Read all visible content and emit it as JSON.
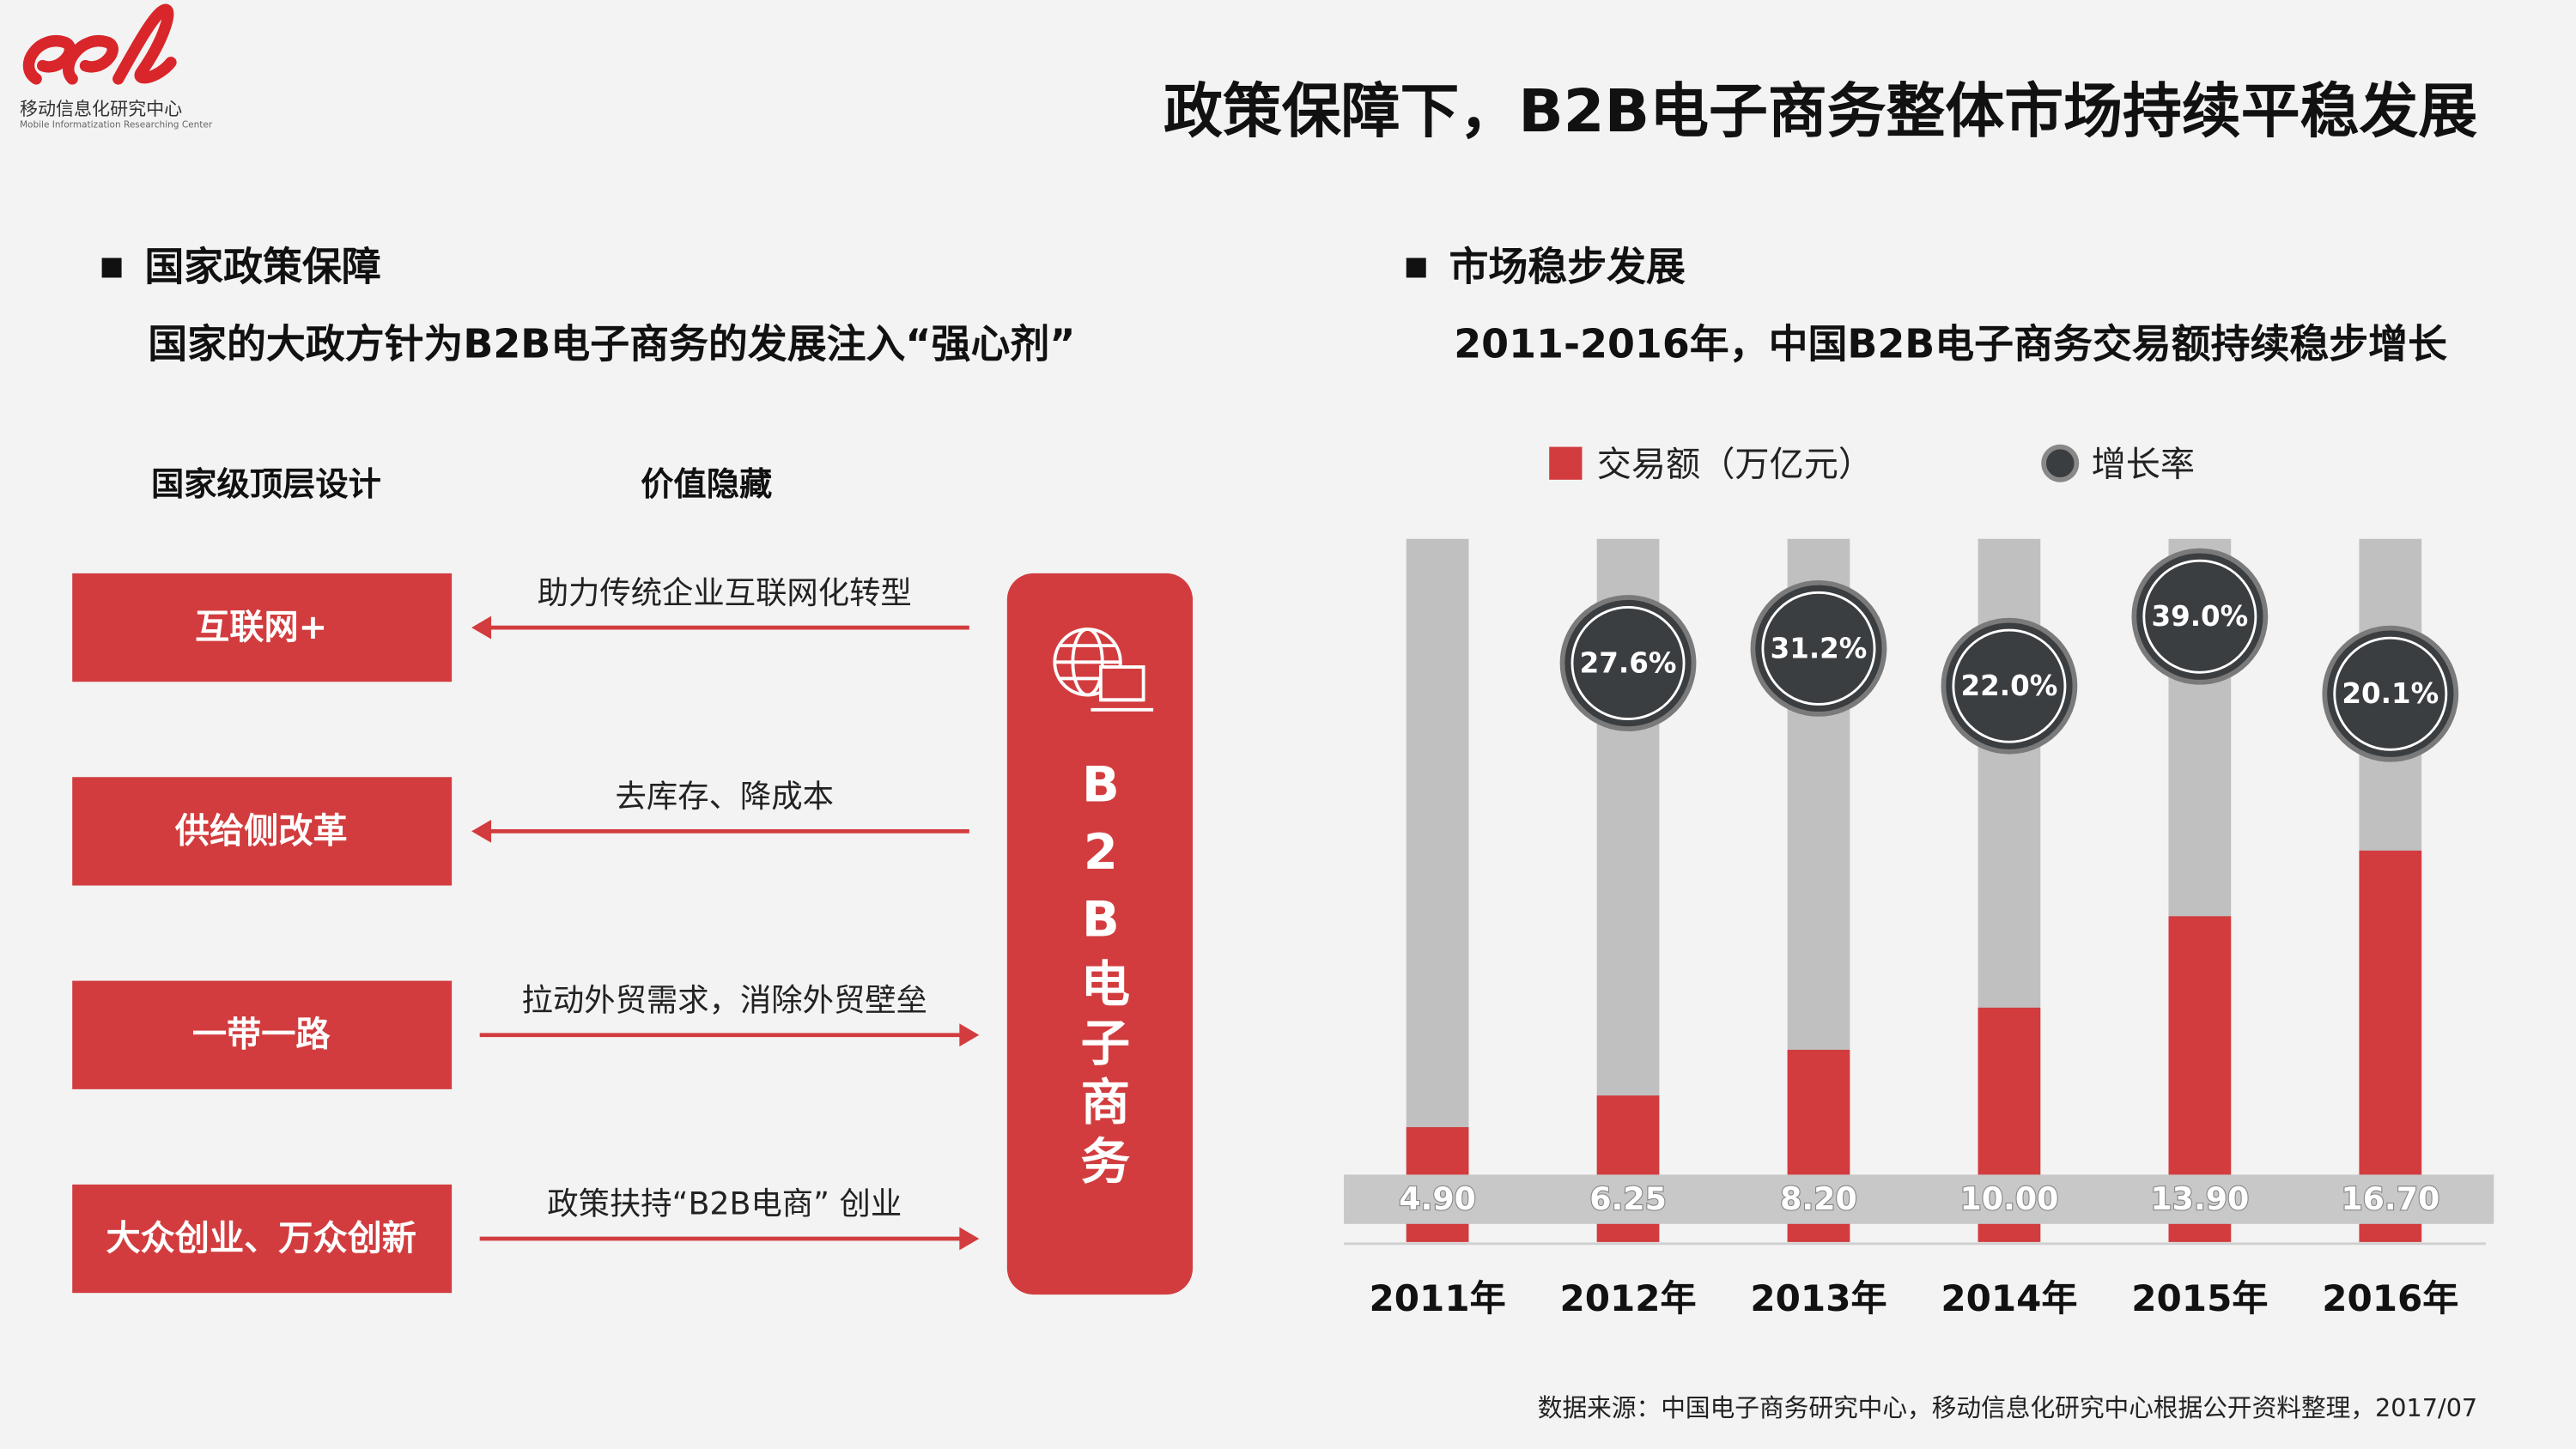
{
  "logo": {
    "name": "移动信息化研究中心",
    "subtitle": "Mobile Informatization Researching Center"
  },
  "title": "政策保障下，B2B电子商务整体市场持续平稳发展",
  "left": {
    "heading": "国家政策保障",
    "subheading": "国家的大政方针为B2B电子商务的发展注入“强心剂”",
    "column_headers": [
      "国家级顶层设计",
      "价值隐藏"
    ],
    "policies": [
      {
        "label": "互联网+",
        "value": "助力传统企业互联网化转型",
        "direction": "left"
      },
      {
        "label": "供给侧改革",
        "value": "去库存、降成本",
        "direction": "left"
      },
      {
        "label": "一带一路",
        "value": "拉动外贸需求，消除外贸壁垒",
        "direction": "right"
      },
      {
        "label": "大众创业、万众创新",
        "value": "政策扶持“B2B电商” 创业",
        "direction": "right"
      }
    ],
    "center": "B2B电子商务"
  },
  "right": {
    "heading": "市场稳步发展",
    "subheading": "2011-2016年，中国B2B电子商务交易额持续稳步增长"
  },
  "chart_data": {
    "type": "bar",
    "categories": [
      "2011年",
      "2012年",
      "2013年",
      "2014年",
      "2015年",
      "2016年"
    ],
    "series": [
      {
        "name": "交易额（万亿元）",
        "color": "#d23c3e",
        "values": [
          4.9,
          6.25,
          8.2,
          10.0,
          13.9,
          16.7
        ],
        "value_labels": [
          "4.90",
          "6.25",
          "8.20",
          "10.00",
          "13.90",
          "16.70"
        ]
      },
      {
        "name": "增长率",
        "color": "#3b3e41",
        "axis": "y2",
        "values": [
          null,
          27.6,
          31.2,
          22.0,
          39.0,
          20.1
        ],
        "value_labels": [
          null,
          "27.6%",
          "31.2%",
          "22.0%",
          "39.0%",
          "20.1%"
        ]
      }
    ],
    "ylim": [
      0,
      30
    ],
    "y2lim": [
      -114,
      58
    ],
    "track_color": "#c0c0c0"
  },
  "source": "数据来源：中国电子商务研究中心，移动信息化研究中心根据公开资料整理，2017/07"
}
